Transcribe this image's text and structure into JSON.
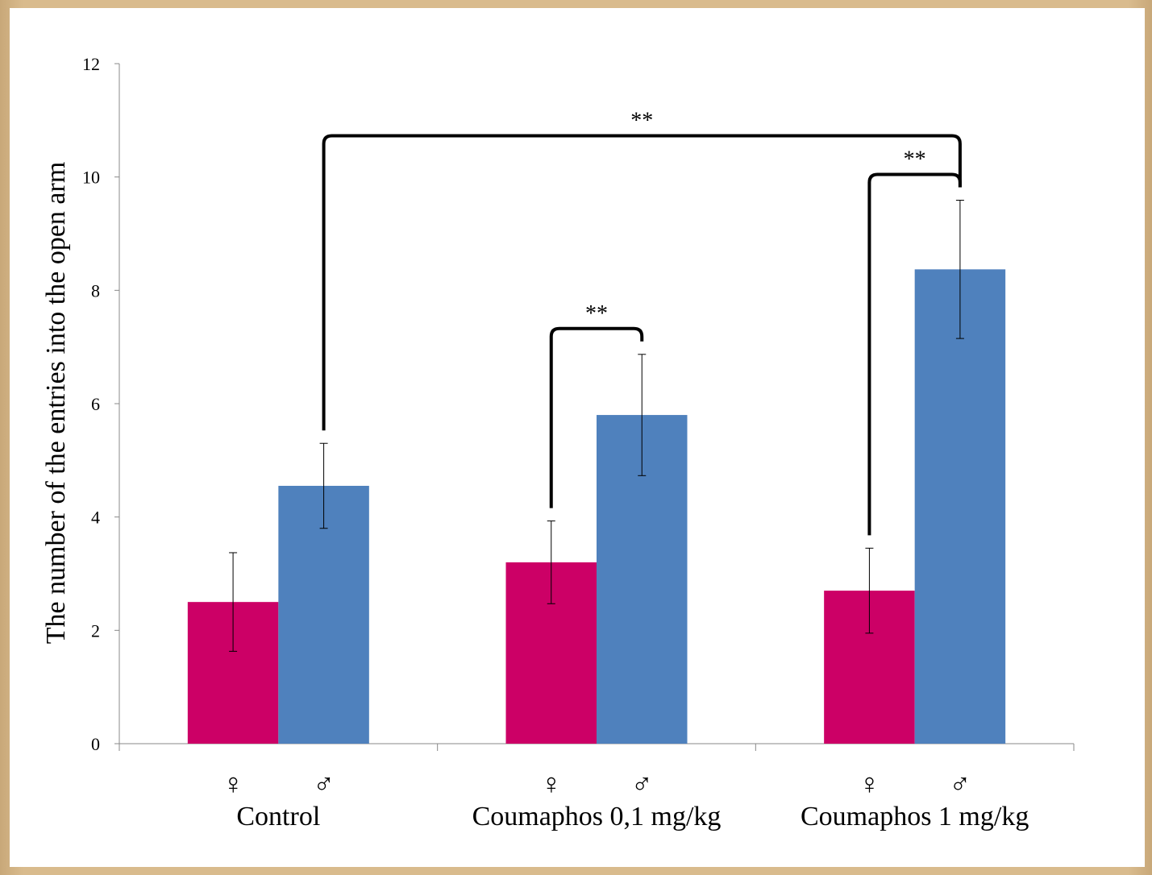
{
  "chart_data": {
    "type": "bar",
    "title": "",
    "xlabel": "",
    "ylabel": "The number of the entries into the open arm",
    "ylim": [
      0,
      12
    ],
    "yticks": [
      0,
      2,
      4,
      6,
      8,
      10,
      12
    ],
    "categories": [
      "Control",
      "Coumaphos 0,1 mg/kg",
      "Coumaphos 1 mg/kg"
    ],
    "sublabels": [
      "♀",
      "♂"
    ],
    "series": [
      {
        "values": [
          2.5,
          3.2,
          2.7
        ],
        "errors": [
          0.87,
          0.73,
          0.75
        ],
        "color": "#cc0066"
      },
      {
        "values": [
          4.55,
          5.8,
          8.37
        ],
        "errors": [
          0.75,
          1.07,
          1.22
        ],
        "color": "#4f81bd"
      }
    ],
    "significance": [
      {
        "from": [
          0,
          1
        ],
        "to": [
          2,
          1
        ],
        "label": "**"
      },
      {
        "from": [
          1,
          0
        ],
        "to": [
          1,
          1
        ],
        "label": "**"
      },
      {
        "from": [
          2,
          0
        ],
        "to": [
          2,
          1
        ],
        "label": "**"
      }
    ],
    "grid": false,
    "legend": "none"
  }
}
